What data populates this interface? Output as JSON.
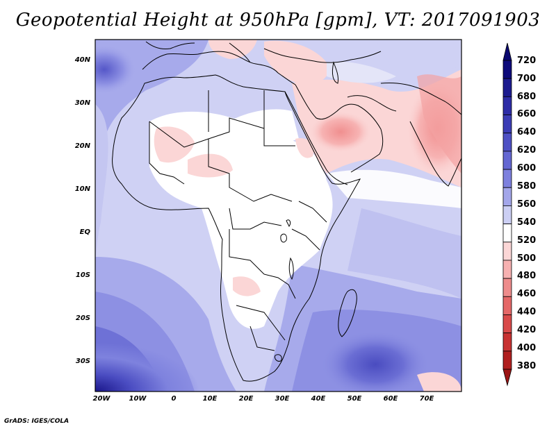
{
  "title": "Geopotential Height at 950hPa [gpm], VT: 2017091903",
  "footer": "GrADS: IGES/COLA",
  "map": {
    "lat_labels": [
      "40N",
      "30N",
      "20N",
      "10N",
      "EQ",
      "10S",
      "20S",
      "30S"
    ],
    "lon_labels": [
      "20W",
      "10W",
      "0",
      "10E",
      "20E",
      "30E",
      "40E",
      "50E",
      "60E",
      "70E"
    ]
  },
  "colorbar": {
    "values": [
      "720",
      "700",
      "680",
      "660",
      "640",
      "620",
      "600",
      "580",
      "560",
      "540",
      "520",
      "500",
      "480",
      "460",
      "440",
      "420",
      "400",
      "380"
    ],
    "colors": [
      "#0d0a7a",
      "#1c1b8f",
      "#2d2ca6",
      "#3b3cb5",
      "#4e50c4",
      "#6467d2",
      "#7d80de",
      "#a3a6ea",
      "#cccff4",
      "#ffffff",
      "#fbd6d6",
      "#f7b1b1",
      "#ee8c8c",
      "#e56868",
      "#d94a4a",
      "#c83232",
      "#b01f1f"
    ]
  }
}
